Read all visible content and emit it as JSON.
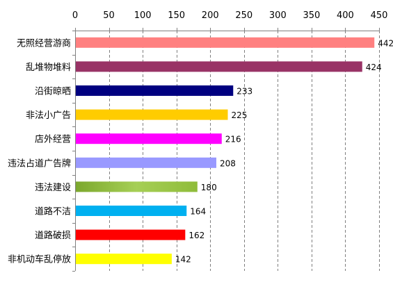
{
  "chart_data": {
    "type": "bar",
    "orientation": "horizontal",
    "categories": [
      "无照经营游商",
      "乱堆物堆料",
      "沿街晾晒",
      "非法小广告",
      "店外经营",
      "违法占道广告牌",
      "违法建设",
      "道路不洁",
      "道路破损",
      "非机动车乱停放"
    ],
    "values": [
      442,
      424,
      233,
      225,
      216,
      208,
      180,
      164,
      162,
      142
    ],
    "colors": [
      "#ff8080",
      "#993366",
      "#000080",
      "#ffcc00",
      "#ff00ff",
      "#9999ff",
      "#8fbc3a",
      "#00b0f0",
      "#ff0000",
      "#ffff00"
    ],
    "xlim": [
      0,
      450
    ],
    "ticks": [
      "0",
      "50",
      "100",
      "150",
      "200",
      "250",
      "300",
      "350",
      "400",
      "450"
    ],
    "xaxis_position": "top",
    "grid": true,
    "grid_style": "dashed-vertical",
    "data_labels": true,
    "legend": "none",
    "title": "",
    "xlabel": "",
    "ylabel": ""
  }
}
